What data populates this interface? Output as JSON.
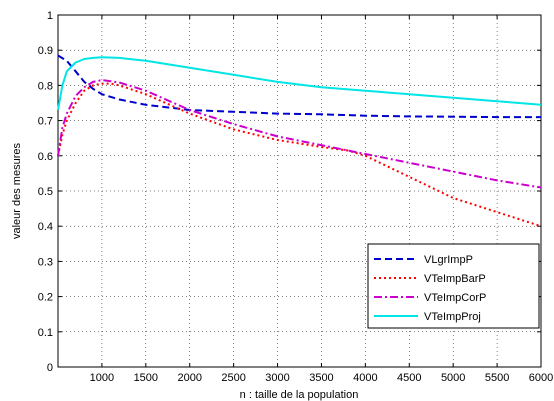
{
  "chart_data": {
    "type": "line",
    "title": "",
    "xlabel": "n : taille de la population",
    "ylabel": "valeur des mesures",
    "xlim": [
      500,
      6000
    ],
    "ylim": [
      0,
      1
    ],
    "xticks": [
      1000,
      1500,
      2000,
      2500,
      3000,
      3500,
      4000,
      4500,
      5000,
      5500,
      6000
    ],
    "yticks": [
      0,
      0.1,
      0.2,
      0.3,
      0.4,
      0.5,
      0.6,
      0.7,
      0.8,
      0.9,
      1
    ],
    "xtick_labels": [
      "1000",
      "1500",
      "2000",
      "2500",
      "3000",
      "3500",
      "4000",
      "4500",
      "5000",
      "5500",
      "6000"
    ],
    "ytick_labels": [
      "0",
      "0.1",
      "0.2",
      "0.3",
      "0.4",
      "0.5",
      "0.6",
      "0.7",
      "0.8",
      "0.9",
      "1"
    ],
    "grid": true,
    "legend_position": "lower-right",
    "series": [
      {
        "name": "VLgrImpP",
        "color": "#0000cc",
        "style": "dashed",
        "x": [
          500,
          600,
          700,
          800,
          900,
          1000,
          1200,
          1500,
          2000,
          2500,
          3000,
          3500,
          4000,
          4500,
          5000,
          5500,
          6000
        ],
        "values": [
          0.885,
          0.87,
          0.84,
          0.81,
          0.79,
          0.775,
          0.76,
          0.745,
          0.73,
          0.725,
          0.72,
          0.718,
          0.714,
          0.712,
          0.711,
          0.71,
          0.71
        ]
      },
      {
        "name": "VTeImpBarP",
        "color": "#ff0000",
        "style": "dotted",
        "x": [
          500,
          550,
          600,
          700,
          800,
          900,
          1000,
          1100,
          1200,
          1500,
          2000,
          2500,
          3000,
          3500,
          3800,
          4000,
          4500,
          5000,
          5500,
          6000
        ],
        "values": [
          0.6,
          0.66,
          0.7,
          0.75,
          0.785,
          0.8,
          0.805,
          0.805,
          0.8,
          0.775,
          0.72,
          0.675,
          0.645,
          0.625,
          0.615,
          0.6,
          0.54,
          0.48,
          0.44,
          0.4
        ]
      },
      {
        "name": "VTeImpCorP",
        "color": "#cc00cc",
        "style": "dashdot",
        "x": [
          500,
          550,
          600,
          700,
          800,
          900,
          1000,
          1100,
          1200,
          1500,
          2000,
          2500,
          3000,
          3500,
          4000,
          4500,
          5000,
          5500,
          6000
        ],
        "values": [
          0.6,
          0.68,
          0.72,
          0.77,
          0.795,
          0.81,
          0.815,
          0.812,
          0.808,
          0.785,
          0.73,
          0.69,
          0.655,
          0.63,
          0.605,
          0.58,
          0.555,
          0.53,
          0.51
        ]
      },
      {
        "name": "VTeImpProj",
        "color": "#00e5e5",
        "style": "solid",
        "x": [
          500,
          550,
          600,
          700,
          800,
          900,
          1000,
          1200,
          1500,
          2000,
          2500,
          3000,
          3500,
          4000,
          4500,
          5000,
          5500,
          6000
        ],
        "values": [
          0.73,
          0.8,
          0.84,
          0.865,
          0.875,
          0.878,
          0.88,
          0.878,
          0.87,
          0.85,
          0.83,
          0.81,
          0.795,
          0.785,
          0.775,
          0.765,
          0.755,
          0.745
        ]
      }
    ]
  }
}
